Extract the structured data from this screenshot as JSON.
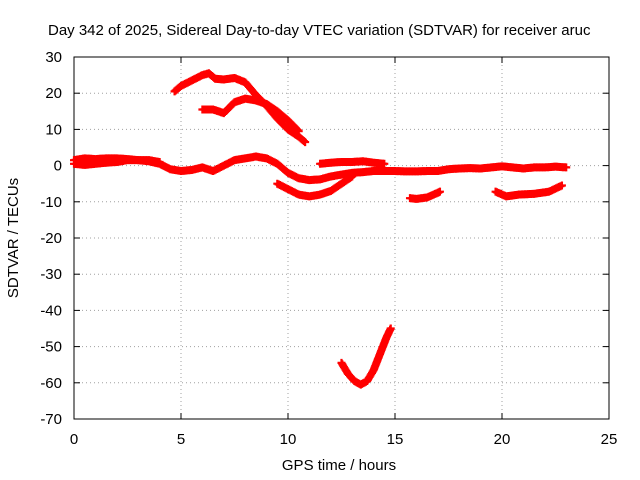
{
  "chart_data": {
    "type": "scatter",
    "title": "Day 342 of 2025, Sidereal Day-to-day VTEC variation (SDTVAR) for receiver aruc",
    "xlabel": "GPS time / hours",
    "ylabel": "SDTVAR / TECUs",
    "xlim": [
      0,
      25
    ],
    "ylim": [
      -70,
      30
    ],
    "xticks": [
      "0",
      "5",
      "10",
      "15",
      "20",
      "25"
    ],
    "yticks": [
      "30",
      "20",
      "10",
      "0",
      "-10",
      "-20",
      "-30",
      "-40",
      "-50",
      "-60",
      "-70"
    ],
    "grid": true,
    "marker": "plus",
    "color": "#ff0000",
    "series": [
      {
        "name": "arc-1",
        "points": [
          [
            0.0,
            1.5
          ],
          [
            0.5,
            2.0
          ],
          [
            1.0,
            1.8
          ],
          [
            1.5,
            2.0
          ],
          [
            2.0,
            2.0
          ],
          [
            2.5,
            1.8
          ],
          [
            3.0,
            1.5
          ],
          [
            3.5,
            1.2
          ],
          [
            4.0,
            0.5
          ],
          [
            4.5,
            -1.0
          ],
          [
            5.0,
            -1.5
          ],
          [
            5.5,
            -1.2
          ],
          [
            6.0,
            -0.5
          ],
          [
            6.5,
            -1.5
          ],
          [
            7.0,
            0.0
          ],
          [
            7.5,
            1.5
          ],
          [
            8.0,
            2.0
          ],
          [
            8.5,
            2.5
          ],
          [
            9.0,
            2.0
          ],
          [
            9.5,
            0.5
          ],
          [
            10.0,
            -2.0
          ],
          [
            10.5,
            -3.5
          ],
          [
            11.0,
            -4.0
          ],
          [
            11.5,
            -3.8
          ],
          [
            12.0,
            -3.0
          ],
          [
            12.5,
            -2.5
          ],
          [
            13.0,
            -2.0
          ],
          [
            13.5,
            -1.8
          ],
          [
            14.0,
            -1.5
          ],
          [
            14.5,
            -1.5
          ],
          [
            15.0,
            -1.5
          ],
          [
            15.5,
            -1.6
          ],
          [
            16.0,
            -1.6
          ],
          [
            16.5,
            -1.5
          ],
          [
            17.0,
            -1.5
          ],
          [
            17.5,
            -1.0
          ],
          [
            18.0,
            -0.8
          ],
          [
            18.5,
            -0.7
          ],
          [
            19.0,
            -0.8
          ],
          [
            19.5,
            -0.5
          ],
          [
            20.0,
            -0.2
          ],
          [
            20.5,
            -0.5
          ],
          [
            21.0,
            -0.8
          ],
          [
            21.5,
            -0.5
          ],
          [
            22.0,
            -0.5
          ],
          [
            22.5,
            -0.3
          ],
          [
            23.0,
            -0.5
          ]
        ]
      },
      {
        "name": "arc-2",
        "points": [
          [
            0.0,
            0.5
          ],
          [
            0.5,
            0.2
          ],
          [
            1.0,
            0.5
          ],
          [
            1.5,
            0.8
          ],
          [
            2.0,
            1.0
          ],
          [
            2.5,
            1.5
          ],
          [
            3.0,
            1.5
          ],
          [
            3.5,
            1.5
          ],
          [
            4.0,
            1.0
          ]
        ]
      },
      {
        "name": "arc-3",
        "points": [
          [
            4.7,
            20.5
          ],
          [
            5.0,
            22.0
          ],
          [
            5.5,
            23.5
          ],
          [
            6.0,
            25.0
          ],
          [
            6.3,
            25.5
          ],
          [
            6.6,
            24.0
          ],
          [
            7.0,
            23.8
          ],
          [
            7.5,
            24.2
          ],
          [
            8.0,
            23.0
          ],
          [
            8.5,
            19.5
          ],
          [
            9.0,
            16.5
          ],
          [
            9.5,
            13.0
          ],
          [
            10.0,
            10.0
          ],
          [
            10.5,
            8.0
          ],
          [
            10.8,
            6.5
          ]
        ]
      },
      {
        "name": "arc-4",
        "points": [
          [
            6.0,
            15.5
          ],
          [
            6.5,
            15.5
          ],
          [
            7.0,
            14.5
          ],
          [
            7.5,
            17.5
          ],
          [
            8.0,
            18.5
          ],
          [
            8.5,
            18.0
          ],
          [
            9.0,
            17.0
          ],
          [
            9.5,
            15.0
          ],
          [
            10.0,
            12.5
          ],
          [
            10.5,
            9.5
          ]
        ]
      },
      {
        "name": "arc-5",
        "points": [
          [
            9.5,
            -5.0
          ],
          [
            10.0,
            -6.5
          ],
          [
            10.5,
            -8.0
          ],
          [
            11.0,
            -8.5
          ],
          [
            11.5,
            -8.0
          ],
          [
            12.0,
            -7.0
          ],
          [
            12.5,
            -5.0
          ],
          [
            13.0,
            -3.0
          ]
        ]
      },
      {
        "name": "arc-6",
        "points": [
          [
            11.5,
            0.5
          ],
          [
            12.0,
            0.8
          ],
          [
            12.5,
            1.0
          ],
          [
            13.0,
            1.0
          ],
          [
            13.5,
            1.2
          ],
          [
            14.0,
            0.8
          ],
          [
            14.5,
            0.5
          ]
        ]
      },
      {
        "name": "arc-7",
        "points": [
          [
            12.5,
            -54.5
          ],
          [
            12.8,
            -57.5
          ],
          [
            13.1,
            -59.5
          ],
          [
            13.4,
            -60.5
          ],
          [
            13.7,
            -59.5
          ],
          [
            14.0,
            -56.5
          ],
          [
            14.3,
            -52.0
          ],
          [
            14.6,
            -47.5
          ],
          [
            14.8,
            -45.0
          ]
        ]
      },
      {
        "name": "arc-8",
        "points": [
          [
            15.7,
            -9.0
          ],
          [
            16.0,
            -9.2
          ],
          [
            16.5,
            -8.8
          ],
          [
            17.0,
            -7.5
          ],
          [
            17.1,
            -7.2
          ]
        ]
      },
      {
        "name": "arc-9",
        "points": [
          [
            19.7,
            -7.2
          ],
          [
            20.2,
            -8.5
          ],
          [
            20.8,
            -8.0
          ],
          [
            21.5,
            -7.8
          ],
          [
            22.2,
            -7.2
          ],
          [
            22.8,
            -5.5
          ]
        ]
      }
    ]
  }
}
